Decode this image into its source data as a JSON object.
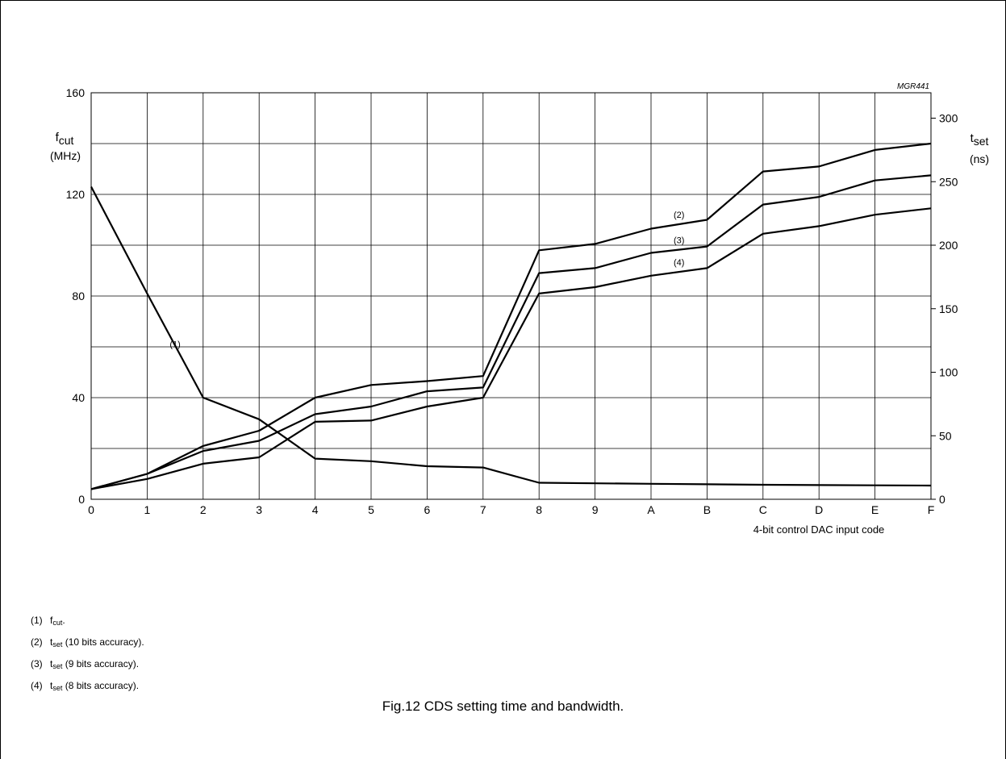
{
  "chart_data": {
    "type": "line",
    "code": "MGR441",
    "xlabel": "4-bit control DAC input code",
    "x": [
      "0",
      "1",
      "2",
      "3",
      "4",
      "5",
      "6",
      "7",
      "8",
      "9",
      "A",
      "B",
      "C",
      "D",
      "E",
      "F"
    ],
    "left_axis": {
      "label_main": "f",
      "label_sub": "cut",
      "unit": "(MHz)",
      "ylim": [
        0,
        160
      ],
      "ticks": [
        0,
        40,
        80,
        120,
        160
      ]
    },
    "right_axis": {
      "label_main": "t",
      "label_sub": "set",
      "unit": "(ns)",
      "ylim": [
        0,
        320
      ],
      "ticks": [
        0,
        50,
        100,
        150,
        200,
        250,
        300
      ]
    },
    "grid": true,
    "series": [
      {
        "id": "1",
        "label": "(1)",
        "axis": "left",
        "values": [
          123,
          81,
          40,
          31.5,
          16,
          15,
          13,
          12.5,
          6.5,
          6.3,
          6.1,
          5.9,
          5.7,
          5.6,
          5.5,
          5.4
        ]
      },
      {
        "id": "2",
        "label": "(2)",
        "axis": "right",
        "values": [
          8,
          20,
          42,
          54,
          80,
          90,
          93,
          97,
          196,
          201,
          213,
          220,
          258,
          262,
          275,
          280
        ]
      },
      {
        "id": "3",
        "label": "(3)",
        "axis": "right",
        "values": [
          8,
          20,
          38,
          46,
          67,
          73,
          85,
          88,
          178,
          182,
          194,
          199,
          232,
          238,
          251,
          255
        ]
      },
      {
        "id": "4",
        "label": "(4)",
        "axis": "right",
        "values": [
          8,
          16,
          28,
          33,
          61,
          62,
          73,
          80,
          162,
          167,
          176,
          182,
          209,
          215,
          224,
          229
        ]
      }
    ]
  },
  "legend": [
    {
      "num": "(1)",
      "main": "f",
      "sub": "cut",
      "rest": "."
    },
    {
      "num": "(2)",
      "main": "t",
      "sub": "set",
      "rest": " (10 bits accuracy)."
    },
    {
      "num": "(3)",
      "main": "t",
      "sub": "set",
      "rest": " (9 bits accuracy)."
    },
    {
      "num": "(4)",
      "main": "t",
      "sub": "set",
      "rest": " (8 bits accuracy)."
    }
  ],
  "caption": "Fig.12  CDS setting time and bandwidth."
}
